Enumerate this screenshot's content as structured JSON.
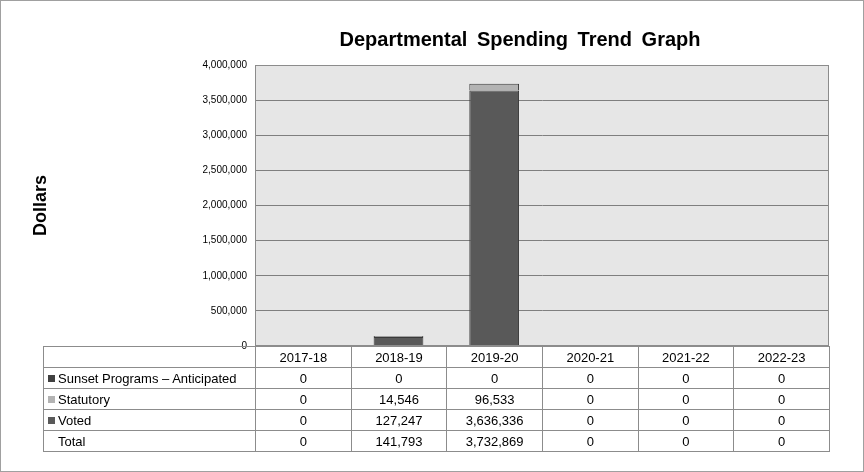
{
  "chart_data": {
    "type": "bar",
    "title": "Departmental Spending Trend Graph",
    "y_label": "Dollars",
    "categories": [
      "2017-18",
      "2018-19",
      "2019-20",
      "2020-21",
      "2021-22",
      "2022-23"
    ],
    "series": [
      {
        "name": "Sunset Programs – Anticipated",
        "color": "#404040",
        "values": [
          0,
          0,
          0,
          0,
          0,
          0
        ],
        "value_labels": [
          "0",
          "0",
          "0",
          "0",
          "0",
          "0"
        ]
      },
      {
        "name": "Statutory",
        "color": "#b3b3b3",
        "values": [
          0,
          14546,
          96533,
          0,
          0,
          0
        ],
        "value_labels": [
          "0",
          "14,546",
          "96,533",
          "0",
          "0",
          "0"
        ]
      },
      {
        "name": "Voted",
        "color": "#595959",
        "values": [
          0,
          127247,
          3636336,
          0,
          0,
          0
        ],
        "value_labels": [
          "0",
          "127,247",
          "3,636,336",
          "0",
          "0",
          "0"
        ]
      }
    ],
    "totals": {
      "name": "Total",
      "values": [
        0,
        141793,
        3732869,
        0,
        0,
        0
      ],
      "value_labels": [
        "0",
        "141,793",
        "3,732,869",
        "0",
        "0",
        "0"
      ]
    },
    "ylim": [
      0,
      4000000
    ],
    "yticks": [
      0,
      {
        "value": 500000,
        "label": "500,000"
      },
      {
        "value": 1000000,
        "label": "1,000,000"
      },
      {
        "value": 1500000,
        "label": "1,500,000"
      },
      {
        "value": 2000000,
        "label": "2,000,000"
      },
      {
        "value": 2500000,
        "label": "2,500,000"
      },
      {
        "value": 3000000,
        "label": "3,000,000"
      },
      {
        "value": 3500000,
        "label": "3,500,000"
      },
      {
        "value": 4000000,
        "label": "4,000,000"
      }
    ],
    "grid": true,
    "stacked": true
  }
}
